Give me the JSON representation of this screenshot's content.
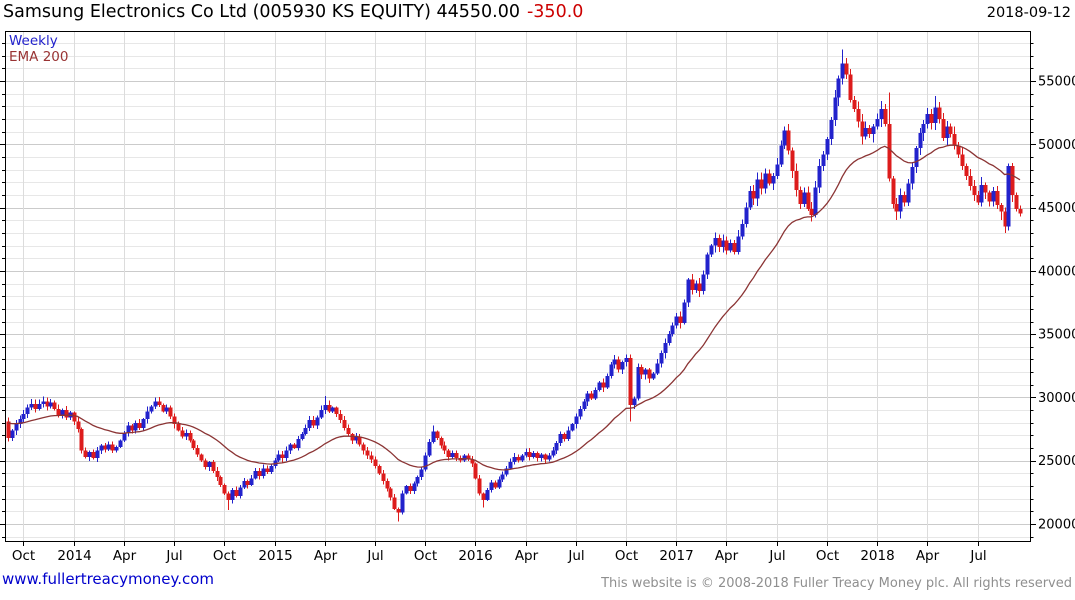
{
  "header": {
    "title": "Samsung Electronics Co Ltd (005930 KS EQUITY) 44550.00",
    "change": "-350.0",
    "date": "2018-09-12"
  },
  "legend": {
    "timeframe": "Weekly",
    "indicator": "EMA 200"
  },
  "footer": {
    "site": "www.fullertreacymoney.com",
    "copyright": "This website is © 2008-2018 Fuller Treacy Money plc. All rights reserved"
  },
  "colors": {
    "up": "#2222cc",
    "down": "#dd1c1c",
    "ema": "#8b3434",
    "grid_minor": "#e7e7e7",
    "grid_major": "#cbcbcb",
    "grid_vert": "#dcdcdc",
    "frame": "#000000",
    "change_text": "#cc0000"
  },
  "chart_data": {
    "type": "candlestick",
    "timeframe": "weekly",
    "instrument": "Samsung Electronics Co Ltd",
    "ticker": "005930 KS EQUITY",
    "last_price": 44550.0,
    "change": -350.0,
    "as_of": "2018-09-12",
    "start_month": "2013-09",
    "ylim": [
      18660,
      58950
    ],
    "y_ticks": [
      20000,
      25000,
      30000,
      35000,
      40000,
      45000,
      50000,
      55000
    ],
    "y_minor_step": 1000,
    "x_ticks": [
      {
        "label": "Oct",
        "week": 4
      },
      {
        "label": "2014",
        "week": 17
      },
      {
        "label": "Apr",
        "week": 30
      },
      {
        "label": "Jul",
        "week": 43
      },
      {
        "label": "Oct",
        "week": 56
      },
      {
        "label": "2015",
        "week": 69
      },
      {
        "label": "Apr",
        "week": 82
      },
      {
        "label": "Jul",
        "week": 95
      },
      {
        "label": "Oct",
        "week": 108
      },
      {
        "label": "2016",
        "week": 121
      },
      {
        "label": "Apr",
        "week": 134
      },
      {
        "label": "Jul",
        "week": 147
      },
      {
        "label": "Oct",
        "week": 160
      },
      {
        "label": "2017",
        "week": 173
      },
      {
        "label": "Apr",
        "week": 186
      },
      {
        "label": "Jul",
        "week": 199
      },
      {
        "label": "Oct",
        "week": 212
      },
      {
        "label": "2018",
        "week": 225
      },
      {
        "label": "Apr",
        "week": 238
      },
      {
        "label": "Jul",
        "week": 251
      }
    ],
    "first_open": 28100,
    "closes": [
      26800,
      27400,
      27900,
      28300,
      28700,
      29200,
      29500,
      29100,
      29500,
      29700,
      29300,
      29600,
      29100,
      28600,
      29000,
      28400,
      28800,
      28100,
      27500,
      25800,
      25300,
      25700,
      25200,
      25800,
      26200,
      25900,
      26300,
      25800,
      26100,
      26600,
      27200,
      27800,
      27400,
      28000,
      27600,
      28300,
      28900,
      29300,
      29700,
      29400,
      28900,
      29200,
      28500,
      27900,
      27400,
      26900,
      27200,
      26600,
      26000,
      25500,
      25000,
      24500,
      24900,
      24200,
      23700,
      23100,
      22400,
      21900,
      22700,
      22200,
      22900,
      23400,
      23100,
      23600,
      24200,
      23800,
      24400,
      24100,
      24600,
      25000,
      25500,
      25200,
      25800,
      26300,
      26000,
      26700,
      27100,
      27600,
      28200,
      27800,
      28400,
      29000,
      29400,
      28900,
      29200,
      28700,
      28200,
      27600,
      27100,
      26600,
      26900,
      26300,
      25800,
      25400,
      25100,
      24600,
      24000,
      23400,
      22800,
      22100,
      21200,
      20900,
      22400,
      23000,
      22600,
      23200,
      23700,
      24300,
      25400,
      26500,
      27300,
      26800,
      26200,
      25800,
      25300,
      25600,
      25200,
      25000,
      25400,
      25100,
      24800,
      23600,
      22400,
      21900,
      22700,
      23300,
      22900,
      23500,
      23900,
      24400,
      24900,
      25300,
      25000,
      25400,
      25700,
      25300,
      25600,
      25200,
      25500,
      25100,
      25400,
      25800,
      26400,
      27100,
      26700,
      27400,
      27900,
      28500,
      29100,
      29700,
      30300,
      29900,
      30600,
      31200,
      30800,
      31700,
      32600,
      33000,
      32200,
      32800,
      33100,
      29400,
      29900,
      32400,
      31800,
      32200,
      31500,
      31900,
      32700,
      33500,
      34300,
      35000,
      35700,
      36400,
      35900,
      37500,
      39300,
      38500,
      39000,
      38400,
      39700,
      41300,
      42000,
      42600,
      41900,
      42400,
      41600,
      42200,
      41500,
      42700,
      43700,
      45000,
      46300,
      45700,
      47200,
      46500,
      47700,
      46900,
      47500,
      48400,
      49900,
      51100,
      49500,
      47900,
      46400,
      45300,
      46200,
      44900,
      44400,
      46600,
      48300,
      49200,
      50400,
      51900,
      53700,
      55200,
      56400,
      55500,
      53500,
      52800,
      51800,
      50600,
      51300,
      50800,
      51400,
      52000,
      52800,
      51600,
      47300,
      45300,
      44700,
      46000,
      45400,
      46900,
      48200,
      49700,
      50900,
      51600,
      52400,
      51700,
      52900,
      52000,
      50500,
      51400,
      50800,
      49900,
      49200,
      48300,
      47500,
      46700,
      46000,
      45400,
      46800,
      46200,
      45500,
      46300,
      45200,
      44700,
      43500,
      48300,
      46000,
      44900,
      44550
    ],
    "wick_overrides": {
      "38": {
        "high": 30000
      },
      "57": {
        "low": 21100
      },
      "82": {
        "high": 30100
      },
      "101": {
        "low": 20200
      },
      "110": {
        "high": 27800
      },
      "123": {
        "low": 21300
      },
      "160": {
        "high": 33400
      },
      "161": {
        "low": 28100
      },
      "201": {
        "high": 51400
      },
      "208": {
        "low": 43900
      },
      "216": {
        "high": 57500
      },
      "228": {
        "high": 54100
      },
      "230": {
        "low": 44000
      },
      "240": {
        "high": 53800
      },
      "257": {
        "low": 44000
      },
      "258": {
        "low": 43000
      },
      "259": {
        "high": 48500
      }
    },
    "ema": {
      "label": "EMA 200",
      "period_weeks": 30,
      "start_value": 28050
    }
  }
}
